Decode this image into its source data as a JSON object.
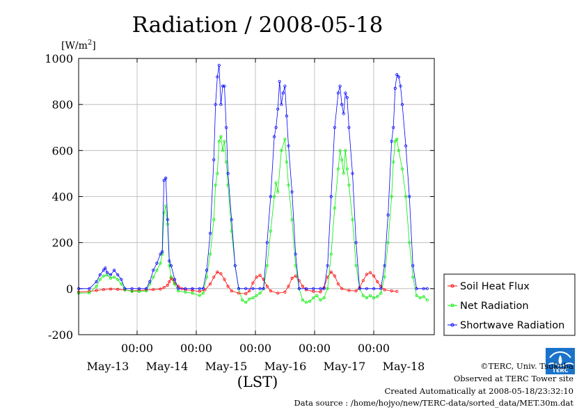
{
  "chart_data": {
    "type": "line",
    "title": "Radiation / 2008-05-18",
    "y_unit_prefix": "[W/m",
    "y_unit_sup": "2",
    "y_unit_suffix": "]",
    "xlabel": "(LST)",
    "ylim": [
      -200,
      1000
    ],
    "yticks": [
      -200,
      0,
      200,
      400,
      600,
      800,
      1000
    ],
    "x_days": [
      "May-13",
      "May-14",
      "May-15",
      "May-16",
      "May-17",
      "May-18"
    ],
    "x_time_label": "00:00",
    "x_range_days": [
      -0.05,
      6.0
    ],
    "grid": true,
    "legend_position": "bottom-right",
    "series": [
      {
        "name": "Soil Heat Flux",
        "color": "#ff0000",
        "points": [
          [
            0.0,
            -15
          ],
          [
            0.3,
            -12
          ],
          [
            0.5,
            -8
          ],
          [
            0.7,
            -4
          ],
          [
            0.9,
            -2
          ],
          [
            1.1,
            -3
          ],
          [
            1.3,
            -6
          ],
          [
            1.5,
            -10
          ],
          [
            1.7,
            -8
          ],
          [
            1.9,
            -6
          ],
          [
            2.1,
            -4
          ],
          [
            2.3,
            -2
          ],
          [
            2.4,
            5
          ],
          [
            2.5,
            15
          ],
          [
            2.55,
            30
          ],
          [
            2.6,
            45
          ],
          [
            2.65,
            40
          ],
          [
            2.7,
            25
          ],
          [
            2.8,
            10
          ],
          [
            2.9,
            0
          ],
          [
            3.0,
            -5
          ],
          [
            3.2,
            -8
          ],
          [
            3.4,
            -12
          ],
          [
            3.55,
            -5
          ],
          [
            3.7,
            20
          ],
          [
            3.8,
            50
          ],
          [
            3.9,
            72
          ],
          [
            4.0,
            65
          ],
          [
            4.1,
            40
          ],
          [
            4.2,
            10
          ],
          [
            4.3,
            -10
          ],
          [
            4.5,
            -20
          ],
          [
            4.7,
            -22
          ],
          [
            4.8,
            -10
          ],
          [
            4.9,
            25
          ],
          [
            5.0,
            50
          ],
          [
            5.1,
            58
          ],
          [
            5.2,
            40
          ],
          [
            5.3,
            10
          ],
          [
            5.4,
            -10
          ],
          [
            5.6,
            -20
          ],
          [
            5.8,
            -15
          ],
          [
            5.9,
            10
          ],
          [
            6.0,
            45
          ],
          [
            6.1,
            55
          ],
          [
            6.2,
            35
          ],
          [
            6.3,
            10
          ],
          [
            6.4,
            -5
          ],
          [
            6.6,
            -12
          ],
          [
            6.8,
            -14
          ],
          [
            6.9,
            5
          ],
          [
            7.0,
            50
          ],
          [
            7.1,
            72
          ],
          [
            7.2,
            55
          ],
          [
            7.3,
            20
          ],
          [
            7.4,
            0
          ],
          [
            7.6,
            -8
          ],
          [
            7.8,
            -10
          ],
          [
            7.9,
            5
          ],
          [
            8.0,
            35
          ],
          [
            8.1,
            62
          ],
          [
            8.2,
            70
          ],
          [
            8.3,
            55
          ],
          [
            8.4,
            30
          ],
          [
            8.5,
            10
          ],
          [
            8.6,
            -5
          ],
          [
            8.8,
            -10
          ],
          [
            8.95,
            -12
          ]
        ]
      },
      {
        "name": "Net Radiation",
        "color": "#00ee00",
        "points": [
          [
            0.0,
            -20
          ],
          [
            0.3,
            -18
          ],
          [
            0.5,
            10
          ],
          [
            0.6,
            40
          ],
          [
            0.7,
            55
          ],
          [
            0.8,
            60
          ],
          [
            0.9,
            45
          ],
          [
            1.0,
            50
          ],
          [
            1.1,
            40
          ],
          [
            1.2,
            20
          ],
          [
            1.3,
            -5
          ],
          [
            1.5,
            -12
          ],
          [
            1.7,
            -12
          ],
          [
            1.9,
            -10
          ],
          [
            2.0,
            20
          ],
          [
            2.1,
            50
          ],
          [
            2.2,
            80
          ],
          [
            2.3,
            110
          ],
          [
            2.35,
            150
          ],
          [
            2.4,
            330
          ],
          [
            2.45,
            360
          ],
          [
            2.5,
            280
          ],
          [
            2.55,
            100
          ],
          [
            2.6,
            50
          ],
          [
            2.7,
            20
          ],
          [
            2.8,
            -10
          ],
          [
            3.0,
            -15
          ],
          [
            3.2,
            -20
          ],
          [
            3.4,
            -30
          ],
          [
            3.5,
            -20
          ],
          [
            3.6,
            50
          ],
          [
            3.7,
            150
          ],
          [
            3.8,
            300
          ],
          [
            3.85,
            450
          ],
          [
            3.9,
            500
          ],
          [
            3.95,
            640
          ],
          [
            4.0,
            660
          ],
          [
            4.05,
            600
          ],
          [
            4.1,
            640
          ],
          [
            4.15,
            550
          ],
          [
            4.2,
            450
          ],
          [
            4.3,
            250
          ],
          [
            4.4,
            100
          ],
          [
            4.5,
            0
          ],
          [
            4.6,
            -50
          ],
          [
            4.7,
            -60
          ],
          [
            4.8,
            -45
          ],
          [
            4.9,
            -40
          ],
          [
            5.0,
            -30
          ],
          [
            5.1,
            -20
          ],
          [
            5.2,
            0
          ],
          [
            5.3,
            100
          ],
          [
            5.4,
            250
          ],
          [
            5.5,
            400
          ],
          [
            5.55,
            460
          ],
          [
            5.6,
            420
          ],
          [
            5.7,
            600
          ],
          [
            5.8,
            650
          ],
          [
            5.85,
            550
          ],
          [
            5.9,
            450
          ],
          [
            6.0,
            300
          ],
          [
            6.1,
            100
          ],
          [
            6.2,
            0
          ],
          [
            6.3,
            -50
          ],
          [
            6.4,
            -60
          ],
          [
            6.5,
            -55
          ],
          [
            6.6,
            -40
          ],
          [
            6.7,
            -30
          ],
          [
            6.8,
            -50
          ],
          [
            6.9,
            -40
          ],
          [
            7.0,
            0
          ],
          [
            7.1,
            150
          ],
          [
            7.2,
            350
          ],
          [
            7.3,
            520
          ],
          [
            7.35,
            600
          ],
          [
            7.4,
            560
          ],
          [
            7.45,
            500
          ],
          [
            7.5,
            600
          ],
          [
            7.55,
            520
          ],
          [
            7.6,
            450
          ],
          [
            7.7,
            300
          ],
          [
            7.8,
            100
          ],
          [
            7.9,
            0
          ],
          [
            8.0,
            -30
          ],
          [
            8.1,
            -40
          ],
          [
            8.2,
            -30
          ],
          [
            8.3,
            -40
          ],
          [
            8.4,
            -35
          ],
          [
            8.5,
            -20
          ],
          [
            8.6,
            50
          ],
          [
            8.7,
            200
          ],
          [
            8.8,
            400
          ],
          [
            8.85,
            550
          ],
          [
            8.9,
            640
          ],
          [
            8.95,
            650
          ],
          [
            9.0,
            600
          ],
          [
            9.1,
            520
          ],
          [
            9.2,
            400
          ],
          [
            9.3,
            200
          ],
          [
            9.4,
            50
          ],
          [
            9.5,
            -30
          ],
          [
            9.6,
            -40
          ],
          [
            9.7,
            -35
          ],
          [
            9.8,
            -50
          ]
        ]
      },
      {
        "name": "Shortwave Radiation",
        "color": "#0000ff",
        "points": [
          [
            0.0,
            0
          ],
          [
            0.3,
            0
          ],
          [
            0.5,
            30
          ],
          [
            0.6,
            60
          ],
          [
            0.7,
            80
          ],
          [
            0.75,
            90
          ],
          [
            0.8,
            70
          ],
          [
            0.9,
            60
          ],
          [
            1.0,
            80
          ],
          [
            1.1,
            60
          ],
          [
            1.2,
            40
          ],
          [
            1.3,
            0
          ],
          [
            1.5,
            0
          ],
          [
            1.7,
            0
          ],
          [
            1.9,
            0
          ],
          [
            2.0,
            30
          ],
          [
            2.1,
            80
          ],
          [
            2.2,
            110
          ],
          [
            2.3,
            150
          ],
          [
            2.35,
            160
          ],
          [
            2.4,
            470
          ],
          [
            2.45,
            480
          ],
          [
            2.5,
            300
          ],
          [
            2.55,
            120
          ],
          [
            2.6,
            100
          ],
          [
            2.7,
            40
          ],
          [
            2.8,
            0
          ],
          [
            3.0,
            0
          ],
          [
            3.2,
            0
          ],
          [
            3.4,
            0
          ],
          [
            3.5,
            0
          ],
          [
            3.6,
            80
          ],
          [
            3.7,
            240
          ],
          [
            3.8,
            560
          ],
          [
            3.85,
            800
          ],
          [
            3.9,
            920
          ],
          [
            3.95,
            970
          ],
          [
            4.0,
            800
          ],
          [
            4.05,
            880
          ],
          [
            4.1,
            880
          ],
          [
            4.15,
            700
          ],
          [
            4.2,
            500
          ],
          [
            4.3,
            300
          ],
          [
            4.4,
            100
          ],
          [
            4.5,
            0
          ],
          [
            4.7,
            0
          ],
          [
            4.9,
            0
          ],
          [
            5.1,
            0
          ],
          [
            5.2,
            0
          ],
          [
            5.3,
            200
          ],
          [
            5.4,
            400
          ],
          [
            5.5,
            660
          ],
          [
            5.55,
            700
          ],
          [
            5.6,
            780
          ],
          [
            5.65,
            900
          ],
          [
            5.7,
            800
          ],
          [
            5.75,
            850
          ],
          [
            5.8,
            880
          ],
          [
            5.85,
            750
          ],
          [
            5.9,
            620
          ],
          [
            6.0,
            420
          ],
          [
            6.1,
            150
          ],
          [
            6.2,
            0
          ],
          [
            6.4,
            0
          ],
          [
            6.6,
            0
          ],
          [
            6.8,
            0
          ],
          [
            6.9,
            0
          ],
          [
            7.0,
            100
          ],
          [
            7.1,
            400
          ],
          [
            7.2,
            700
          ],
          [
            7.3,
            850
          ],
          [
            7.35,
            880
          ],
          [
            7.4,
            800
          ],
          [
            7.45,
            760
          ],
          [
            7.5,
            850
          ],
          [
            7.55,
            830
          ],
          [
            7.6,
            700
          ],
          [
            7.7,
            500
          ],
          [
            7.8,
            200
          ],
          [
            7.9,
            0
          ],
          [
            8.1,
            0
          ],
          [
            8.3,
            0
          ],
          [
            8.5,
            0
          ],
          [
            8.6,
            100
          ],
          [
            8.7,
            320
          ],
          [
            8.8,
            640
          ],
          [
            8.85,
            700
          ],
          [
            8.9,
            870
          ],
          [
            8.95,
            930
          ],
          [
            9.0,
            920
          ],
          [
            9.05,
            880
          ],
          [
            9.1,
            800
          ],
          [
            9.2,
            620
          ],
          [
            9.3,
            400
          ],
          [
            9.4,
            100
          ],
          [
            9.5,
            0
          ],
          [
            9.7,
            0
          ],
          [
            9.8,
            0
          ]
        ]
      }
    ]
  },
  "credits": {
    "org": "©TERC, Univ. Tsukuba",
    "site": "Observed at TERC Tower site",
    "created": "Created Automatically at 2008-05-18/23:32:10",
    "source": "Data source : /home/hojyo/new/TERC-data/sorted_data/MET.30m.dat"
  },
  "colors": {
    "grid": "#b4b4b4",
    "frame": "#000000"
  },
  "logo": {
    "icon": "terc-logo-icon",
    "text": "TERC"
  }
}
